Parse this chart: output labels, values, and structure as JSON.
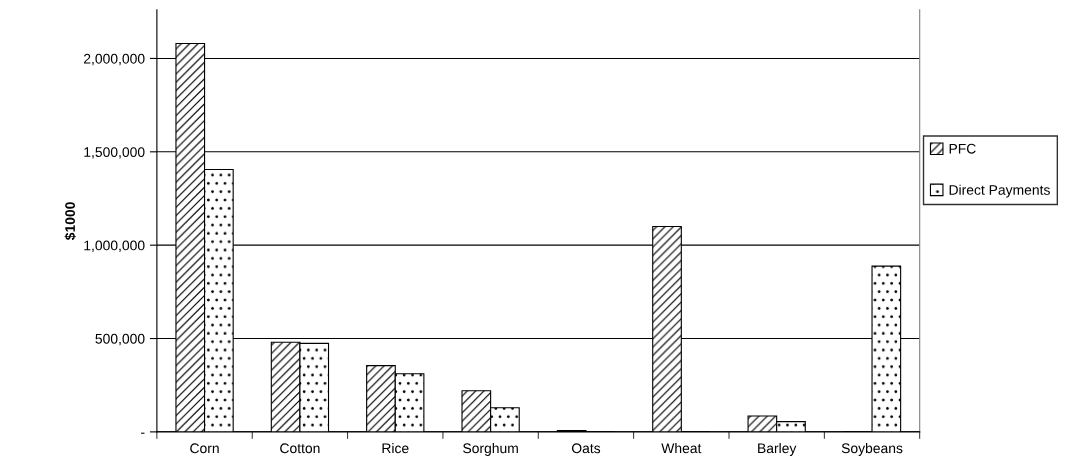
{
  "chart_data": {
    "type": "bar",
    "ylabel": "$1000",
    "categories": [
      "Corn",
      "Cotton",
      "Rice",
      "Sorghum",
      "Oats",
      "Wheat",
      "Barley",
      "Soybeans"
    ],
    "series": [
      {
        "name": "PFC",
        "color": "#000000",
        "values": [
          2080000,
          480000,
          355000,
          220000,
          7000,
          1100000,
          85000,
          0
        ]
      },
      {
        "name": "Direct Payments",
        "color": "#000000",
        "values": [
          1405000,
          474000,
          311000,
          129000,
          0,
          0,
          55000,
          888000
        ]
      }
    ],
    "ylim": [
      0,
      2260000
    ],
    "yticks": [
      {
        "value": 0,
        "label": "-"
      },
      {
        "value": 500000,
        "label": "500,000"
      },
      {
        "value": 1000000,
        "label": "1,000,000"
      },
      {
        "value": 1500000,
        "label": "1,500,000"
      },
      {
        "value": 2000000,
        "label": "2,000,000"
      }
    ],
    "grid": "y",
    "legend": "right"
  }
}
